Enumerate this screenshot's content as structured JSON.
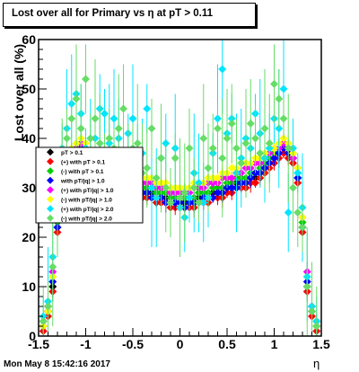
{
  "title": "Lost over all for Primary vs   η at pT > 0.11",
  "timestamp": "Mon May  8 15:42:16 2017",
  "chart_data": {
    "type": "scatter",
    "title": "Lost over all for Primary vs   η at pT > 0.11",
    "xlabel": "η",
    "ylabel": "Lost over all (%)",
    "xlim": [
      -1.5,
      1.5
    ],
    "ylim": [
      0,
      60
    ],
    "x_ticks": [
      "-1.5",
      "-1",
      "-0.5",
      "0",
      "0.5",
      "1",
      "1.5"
    ],
    "y_ticks": [
      "0",
      "10",
      "20",
      "30",
      "40",
      "50",
      "60"
    ],
    "grid": false,
    "legend_position": "left",
    "x": [
      -1.45,
      -1.4,
      -1.35,
      -1.3,
      -1.25,
      -1.2,
      -1.15,
      -1.1,
      -1.05,
      -1.0,
      -0.95,
      -0.9,
      -0.85,
      -0.8,
      -0.75,
      -0.7,
      -0.65,
      -0.6,
      -0.55,
      -0.5,
      -0.45,
      -0.4,
      -0.35,
      -0.3,
      -0.25,
      -0.2,
      -0.15,
      -0.1,
      -0.05,
      0.0,
      0.05,
      0.1,
      0.15,
      0.2,
      0.25,
      0.3,
      0.35,
      0.4,
      0.45,
      0.5,
      0.55,
      0.6,
      0.65,
      0.7,
      0.75,
      0.8,
      0.85,
      0.9,
      0.95,
      1.0,
      1.05,
      1.1,
      1.15,
      1.2,
      1.25,
      1.3,
      1.35,
      1.4,
      1.45
    ],
    "series": [
      {
        "name": "pT > 0.1",
        "color": "#000000",
        "values": [
          2,
          5,
          10,
          22,
          31,
          34,
          36,
          37,
          38,
          37,
          35,
          34,
          33,
          33,
          32,
          32,
          31,
          31,
          31,
          30,
          30,
          29,
          29,
          29,
          28,
          28,
          28,
          27,
          27,
          27,
          27,
          27,
          27,
          28,
          28,
          28,
          29,
          29,
          29,
          30,
          30,
          31,
          31,
          31,
          32,
          32,
          33,
          34,
          35,
          36,
          37,
          38,
          37,
          36,
          32,
          22,
          10,
          5,
          2
        ]
      },
      {
        "name": "(+) with pT > 0.1",
        "color": "#ff0000",
        "values": [
          1,
          4,
          9,
          21,
          30,
          33,
          35,
          36,
          37,
          36,
          34,
          33,
          32,
          32,
          31,
          31,
          30,
          30,
          30,
          29,
          29,
          28,
          28,
          28,
          27,
          27,
          27,
          26,
          26,
          26,
          26,
          26,
          26,
          27,
          27,
          27,
          28,
          28,
          28,
          29,
          29,
          30,
          30,
          30,
          31,
          31,
          32,
          33,
          34,
          35,
          36,
          37,
          36,
          35,
          31,
          21,
          9,
          4,
          1
        ]
      },
      {
        "name": "(-) with pT > 0.1",
        "color": "#00d000",
        "values": [
          3,
          6,
          12,
          23,
          33,
          35,
          37,
          38,
          39,
          38,
          36,
          35,
          34,
          34,
          33,
          33,
          32,
          32,
          32,
          31,
          31,
          30,
          30,
          30,
          29,
          29,
          29,
          28,
          28,
          28,
          28,
          28,
          28,
          29,
          29,
          29,
          30,
          30,
          30,
          31,
          31,
          32,
          32,
          32,
          33,
          33,
          34,
          35,
          36,
          37,
          38,
          39,
          38,
          37,
          33,
          23,
          12,
          6,
          3
        ]
      },
      {
        "name": "with pT/|q| > 1.0",
        "color": "#0000ff",
        "values": [
          2,
          5,
          11,
          22,
          32,
          34,
          36,
          37,
          38,
          37,
          35,
          34,
          33,
          32,
          32,
          31,
          31,
          31,
          30,
          30,
          29,
          29,
          29,
          28,
          28,
          28,
          27,
          27,
          27,
          27,
          26,
          27,
          27,
          27,
          28,
          28,
          28,
          29,
          29,
          30,
          30,
          30,
          31,
          31,
          32,
          33,
          33,
          34,
          35,
          36,
          37,
          38,
          37,
          36,
          32,
          22,
          11,
          5,
          2
        ]
      },
      {
        "name": "(+) with pT/|q| > 1.0",
        "color": "#ff00ff",
        "values": [
          3,
          6,
          13,
          24,
          34,
          36,
          38,
          38,
          39,
          38,
          37,
          36,
          35,
          34,
          34,
          33,
          33,
          33,
          32,
          32,
          32,
          31,
          31,
          31,
          30,
          30,
          30,
          29,
          29,
          29,
          29,
          29,
          30,
          30,
          30,
          31,
          31,
          31,
          32,
          32,
          32,
          33,
          33,
          34,
          34,
          35,
          35,
          36,
          37,
          38,
          38,
          39,
          38,
          36,
          34,
          24,
          13,
          6,
          3
        ]
      },
      {
        "name": "(-) with pT/|q| > 1.0",
        "color": "#ffff00",
        "values": [
          2,
          5,
          12,
          24,
          34,
          36,
          38,
          39,
          40,
          39,
          37,
          36,
          36,
          35,
          35,
          34,
          34,
          34,
          33,
          33,
          33,
          32,
          32,
          32,
          31,
          31,
          31,
          30,
          30,
          30,
          30,
          30,
          31,
          31,
          31,
          32,
          32,
          32,
          33,
          33,
          34,
          34,
          35,
          35,
          35,
          36,
          36,
          37,
          38,
          38,
          39,
          40,
          39,
          37,
          34,
          24,
          12,
          5,
          2
        ]
      },
      {
        "name": "(+) with pT/|q| > 2.0",
        "color": "#00e5ff",
        "values": [
          4,
          7,
          16,
          29,
          38,
          42,
          47,
          49,
          45,
          38,
          37,
          40,
          46,
          45,
          39,
          44,
          40,
          35,
          41,
          44,
          34,
          37,
          46,
          30,
          28,
          36,
          39,
          27,
          38,
          26,
          24,
          28,
          33,
          31,
          27,
          28,
          37,
          44,
          54,
          41,
          44,
          33,
          36,
          40,
          38,
          45,
          41,
          36,
          38,
          44,
          42,
          50,
          25,
          38,
          33,
          26,
          12,
          6,
          3
        ]
      },
      {
        "name": "(-) with pT/|q| > 2.0",
        "color": "#66dd66",
        "values": [
          3,
          6,
          14,
          26,
          36,
          40,
          44,
          48,
          42,
          52,
          40,
          44,
          39,
          33,
          40,
          38,
          42,
          46,
          36,
          38,
          39,
          33,
          34,
          42,
          32,
          36,
          30,
          27,
          36,
          28,
          29,
          38,
          30,
          27,
          40,
          34,
          38,
          42,
          36,
          40,
          43,
          38,
          35,
          39,
          43,
          40,
          37,
          42,
          39,
          51,
          48,
          44,
          38,
          30,
          25,
          22,
          10,
          5,
          2
        ]
      }
    ]
  }
}
